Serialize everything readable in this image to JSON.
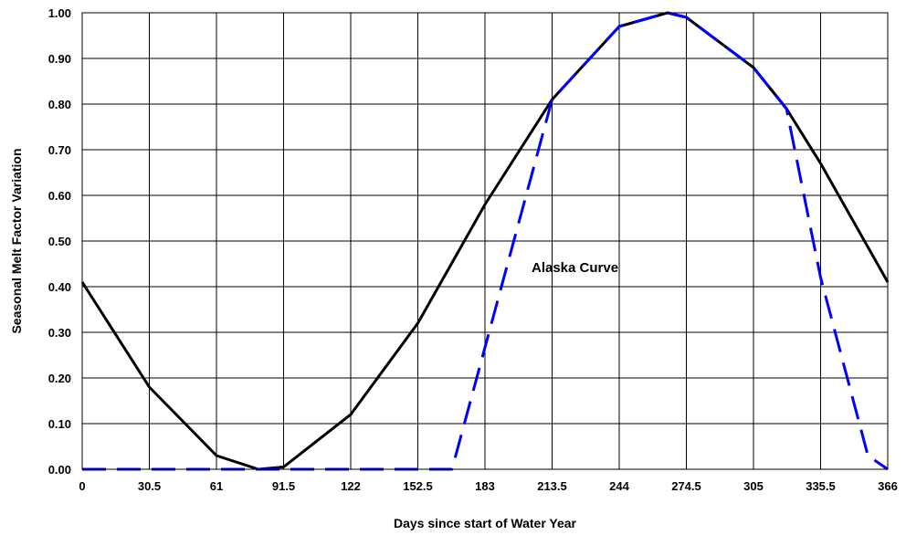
{
  "chart_data": {
    "type": "line",
    "title": "",
    "xlabel": "Days since start of Water Year",
    "ylabel": "Seasonal Melt Factor Variation",
    "xlim": [
      0,
      366
    ],
    "ylim": [
      0,
      1
    ],
    "grid": true,
    "x_ticks": [
      "0",
      "30.5",
      "61",
      "91.5",
      "122",
      "152.5",
      "183",
      "213.5",
      "244",
      "274.5",
      "305",
      "335.5",
      "366"
    ],
    "y_ticks": [
      "0.00",
      "0.10",
      "0.20",
      "0.30",
      "0.40",
      "0.50",
      "0.60",
      "0.70",
      "0.80",
      "0.90",
      "1.00"
    ],
    "annotation": "Alaska Curve",
    "series": [
      {
        "color": "#000000",
        "style": "solid",
        "points": [
          [
            0,
            0.41
          ],
          [
            30.5,
            0.18
          ],
          [
            61,
            0.03
          ],
          [
            80,
            0.0
          ],
          [
            91.5,
            0.005
          ],
          [
            122,
            0.12
          ],
          [
            152.5,
            0.32
          ],
          [
            183,
            0.58
          ],
          [
            213.5,
            0.81
          ],
          [
            244,
            0.97
          ],
          [
            266,
            1.0
          ],
          [
            274.5,
            0.99
          ],
          [
            305,
            0.88
          ],
          [
            320,
            0.79
          ],
          [
            335.5,
            0.67
          ],
          [
            366,
            0.41
          ]
        ]
      },
      {
        "color": "#0000ff",
        "style": "dashed",
        "points": [
          [
            0,
            0.0
          ],
          [
            168,
            0.0
          ],
          [
            213.5,
            0.81
          ],
          [
            244,
            0.97
          ],
          [
            266,
            1.0
          ],
          [
            274.5,
            0.99
          ],
          [
            305,
            0.88
          ],
          [
            320,
            0.79
          ],
          [
            335.5,
            0.42
          ],
          [
            357,
            0.03
          ],
          [
            366,
            0.0
          ]
        ]
      }
    ]
  }
}
